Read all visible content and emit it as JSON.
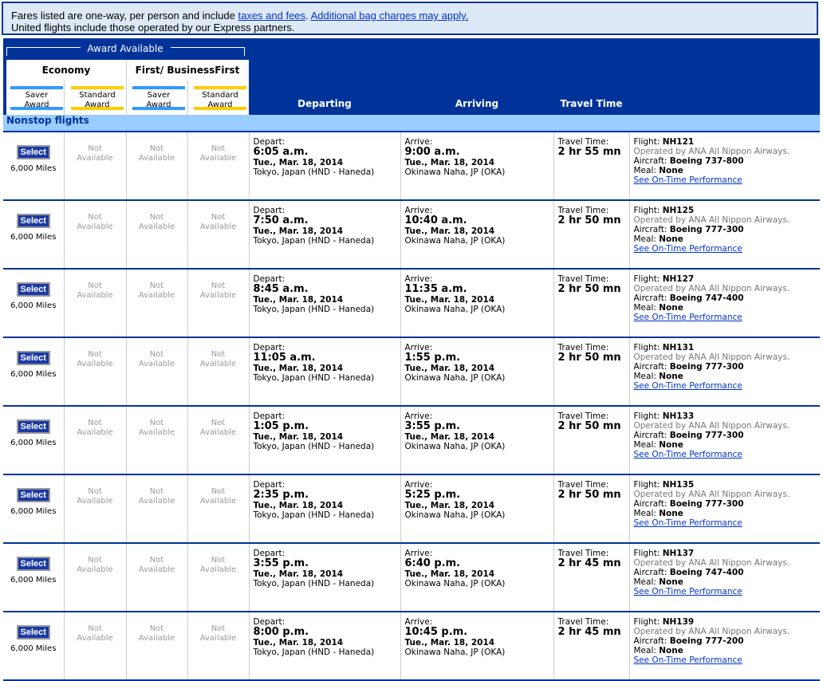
{
  "notice": {
    "line1": "Fares listed are one-way, per person and include ",
    "link1": "taxes and fees",
    "sep": ". ",
    "link2": "Additional bag charges may apply.",
    "line2": "United flights include those operated by our Express partners."
  },
  "header": {
    "award_available": "Award Available",
    "economy": "Economy",
    "first": "First/ BusinessFirst",
    "saver": [
      "Saver",
      "Award"
    ],
    "standard": [
      "Standard",
      "Award"
    ],
    "departing": "Departing",
    "arriving": "Arriving",
    "travel_time": "Travel Time"
  },
  "colors": {
    "brand_blue": "#003399",
    "saver": "#3399ff",
    "standard": "#ffcc00",
    "section": "#99ccff"
  },
  "section": "Nonstop flights",
  "labels": {
    "select": "Select",
    "not": "Not",
    "available": "Available",
    "depart": "Depart:",
    "arrive": "Arrive:",
    "travel": "Travel Time:",
    "flight": "Flight: ",
    "aircraft": "Aircraft: ",
    "meal": "Meal: ",
    "ontime": "See On-Time Performance"
  },
  "flights": [
    {
      "miles": "6,000 Miles",
      "dep": "6:05 a.m.",
      "dep_date": "Tue., Mar. 18, 2014",
      "from": "Tokyo, Japan (HND - Haneda)",
      "arr": "9:00 a.m.",
      "arr_date": "Tue., Mar. 18, 2014",
      "to": "Okinawa Naha, JP (OKA)",
      "time": "2 hr 55 mn",
      "flight": "NH121",
      "operated": "Operated by ANA All Nippon Airways.",
      "aircraft": "Boeing 737-800",
      "meal": "None"
    },
    {
      "miles": "6,000 Miles",
      "dep": "7:50 a.m.",
      "dep_date": "Tue., Mar. 18, 2014",
      "from": "Tokyo, Japan (HND - Haneda)",
      "arr": "10:40 a.m.",
      "arr_date": "Tue., Mar. 18, 2014",
      "to": "Okinawa Naha, JP (OKA)",
      "time": "2 hr 50 mn",
      "flight": "NH125",
      "operated": "Operated by ANA All Nippon Airways.",
      "aircraft": "Boeing 777-300",
      "meal": "None"
    },
    {
      "miles": "6,000 Miles",
      "dep": "8:45 a.m.",
      "dep_date": "Tue., Mar. 18, 2014",
      "from": "Tokyo, Japan (HND - Haneda)",
      "arr": "11:35 a.m.",
      "arr_date": "Tue., Mar. 18, 2014",
      "to": "Okinawa Naha, JP (OKA)",
      "time": "2 hr 50 mn",
      "flight": "NH127",
      "operated": "Operated by ANA All Nippon Airways.",
      "aircraft": "Boeing 747-400",
      "meal": "None"
    },
    {
      "miles": "6,000 Miles",
      "dep": "11:05 a.m.",
      "dep_date": "Tue., Mar. 18, 2014",
      "from": "Tokyo, Japan (HND - Haneda)",
      "arr": "1:55 p.m.",
      "arr_date": "Tue., Mar. 18, 2014",
      "to": "Okinawa Naha, JP (OKA)",
      "time": "2 hr 50 mn",
      "flight": "NH131",
      "operated": "Operated by ANA All Nippon Airways.",
      "aircraft": "Boeing 777-300",
      "meal": "None"
    },
    {
      "miles": "6,000 Miles",
      "dep": "1:05 p.m.",
      "dep_date": "Tue., Mar. 18, 2014",
      "from": "Tokyo, Japan (HND - Haneda)",
      "arr": "3:55 p.m.",
      "arr_date": "Tue., Mar. 18, 2014",
      "to": "Okinawa Naha, JP (OKA)",
      "time": "2 hr 50 mn",
      "flight": "NH133",
      "operated": "Operated by ANA All Nippon Airways.",
      "aircraft": "Boeing 777-300",
      "meal": "None"
    },
    {
      "miles": "6,000 Miles",
      "dep": "2:35 p.m.",
      "dep_date": "Tue., Mar. 18, 2014",
      "from": "Tokyo, Japan (HND - Haneda)",
      "arr": "5:25 p.m.",
      "arr_date": "Tue., Mar. 18, 2014",
      "to": "Okinawa Naha, JP (OKA)",
      "time": "2 hr 50 mn",
      "flight": "NH135",
      "operated": "Operated by ANA All Nippon Airways.",
      "aircraft": "Boeing 777-300",
      "meal": "None"
    },
    {
      "miles": "6,000 Miles",
      "dep": "3:55 p.m.",
      "dep_date": "Tue., Mar. 18, 2014",
      "from": "Tokyo, Japan (HND - Haneda)",
      "arr": "6:40 p.m.",
      "arr_date": "Tue., Mar. 18, 2014",
      "to": "Okinawa Naha, JP (OKA)",
      "time": "2 hr 45 mn",
      "flight": "NH137",
      "operated": "Operated by ANA All Nippon Airways.",
      "aircraft": "Boeing 747-400",
      "meal": "None"
    },
    {
      "miles": "6,000 Miles",
      "dep": "8:00 p.m.",
      "dep_date": "Tue., Mar. 18, 2014",
      "from": "Tokyo, Japan (HND - Haneda)",
      "arr": "10:45 p.m.",
      "arr_date": "Tue., Mar. 18, 2014",
      "to": "Okinawa Naha, JP (OKA)",
      "time": "2 hr 45 mn",
      "flight": "NH139",
      "operated": "Operated by ANA All Nippon Airways.",
      "aircraft": "Boeing 777-200",
      "meal": "None"
    }
  ]
}
